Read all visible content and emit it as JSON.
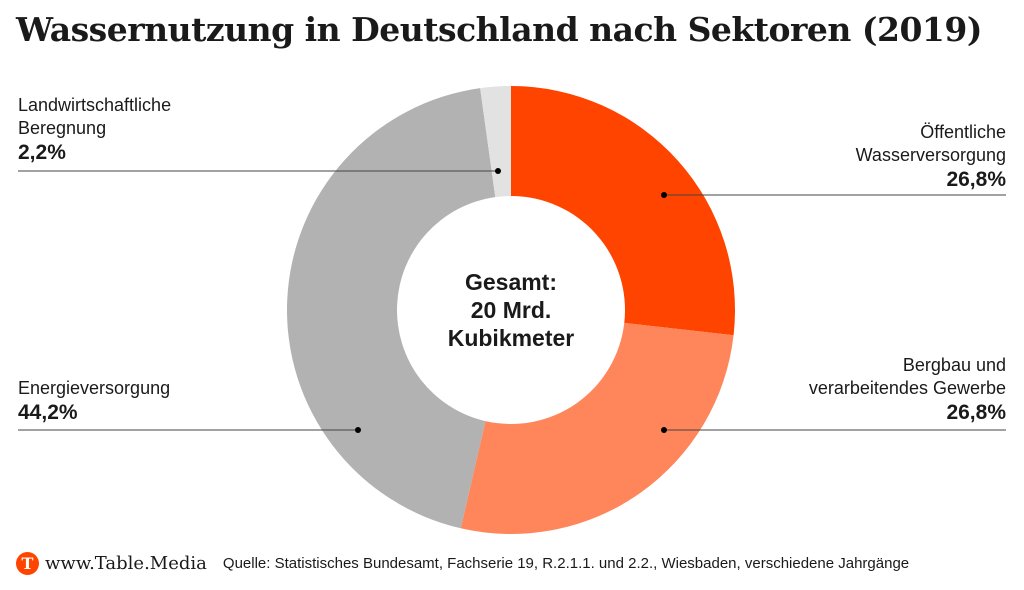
{
  "chart_data": {
    "type": "pie",
    "title": "Wassernutzung in Deutschland nach Sektoren (2019)",
    "center_label": [
      "Gesamt:",
      "20 Mrd.",
      "Kubikmeter"
    ],
    "slices": [
      {
        "name_lines": [
          "Öffentliche",
          "Wasserversorgung"
        ],
        "value": 26.8,
        "label": "26,8%",
        "color": "#ff4400"
      },
      {
        "name_lines": [
          "Bergbau und",
          "verarbeitendes Gewerbe"
        ],
        "value": 26.8,
        "label": "26,8%",
        "color": "#ff855a"
      },
      {
        "name_lines": [
          "Energieversorgung"
        ],
        "value": 44.2,
        "label": "44,2%",
        "color": "#b2b2b2"
      },
      {
        "name_lines": [
          "Landwirtschaftliche",
          "Beregnung"
        ],
        "value": 2.2,
        "label": "2,2%",
        "color": "#e2e2e2"
      }
    ]
  },
  "footer": {
    "site": "www.Table.Media",
    "logo_letter": "T",
    "source": "Quelle: Statistisches Bundesamt, Fachserie 19, R.2.1.1. und 2.2., Wiesbaden, verschiedene Jahrgänge"
  }
}
